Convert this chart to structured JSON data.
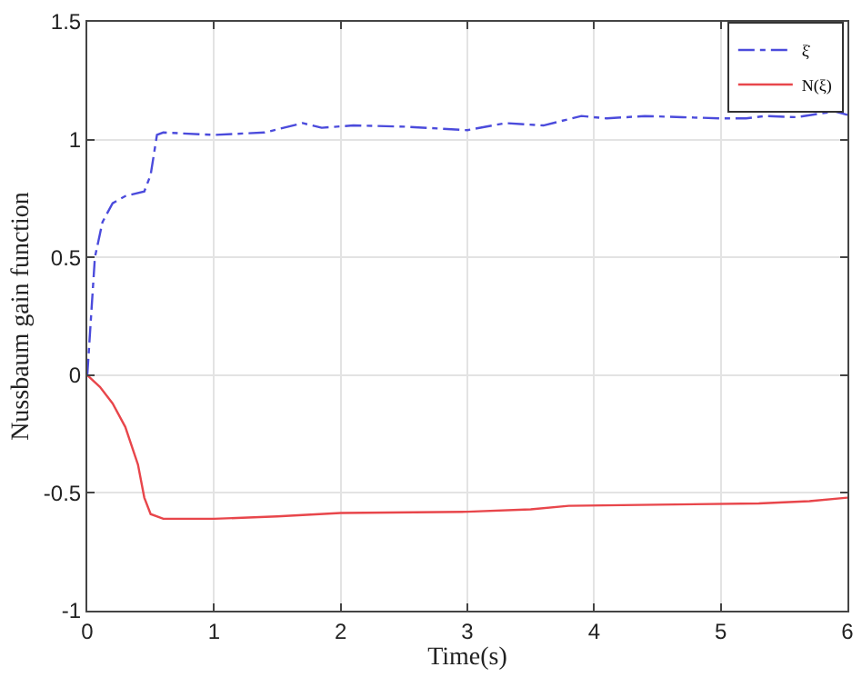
{
  "chart_data": {
    "type": "line",
    "xlabel": "Time(s)",
    "ylabel": "Nussbaum gain function",
    "xlim": [
      0,
      6
    ],
    "xticks": [
      0,
      1,
      2,
      3,
      4,
      5,
      6
    ],
    "ylim": [
      -1,
      1.5
    ],
    "yticks": [
      -1,
      -0.5,
      0,
      0.5,
      1,
      1.5
    ],
    "grid": true,
    "legend": "top right",
    "marker": "none",
    "series": [
      {
        "name": "ξ̇",
        "color": "#4b4bdc",
        "line_style": "dashdot",
        "x": [
          0,
          0.03,
          0.06,
          0.12,
          0.2,
          0.3,
          0.45,
          0.5,
          0.55,
          0.6,
          1,
          1.4,
          1.7,
          1.85,
          2.1,
          2.5,
          3,
          3.3,
          3.6,
          3.9,
          4.1,
          4.4,
          4.7,
          5,
          5.2,
          5.35,
          5.6,
          5.9,
          6
        ],
        "values": [
          0,
          0.25,
          0.5,
          0.65,
          0.73,
          0.76,
          0.78,
          0.85,
          1.02,
          1.03,
          1.02,
          1.03,
          1.07,
          1.05,
          1.06,
          1.055,
          1.04,
          1.07,
          1.06,
          1.1,
          1.09,
          1.1,
          1.095,
          1.09,
          1.09,
          1.1,
          1.095,
          1.12,
          1.105
        ]
      },
      {
        "name": "N(ξ)",
        "color": "#e8464b",
        "line_style": "solid",
        "x": [
          0,
          0.1,
          0.2,
          0.3,
          0.4,
          0.45,
          0.5,
          0.6,
          1,
          1.5,
          2,
          3,
          3.5,
          3.8,
          4.5,
          5.3,
          5.7,
          6
        ],
        "values": [
          0,
          -0.05,
          -0.12,
          -0.22,
          -0.38,
          -0.52,
          -0.59,
          -0.61,
          -0.61,
          -0.6,
          -0.585,
          -0.58,
          -0.57,
          -0.555,
          -0.55,
          -0.545,
          -0.535,
          -0.52
        ]
      }
    ]
  }
}
